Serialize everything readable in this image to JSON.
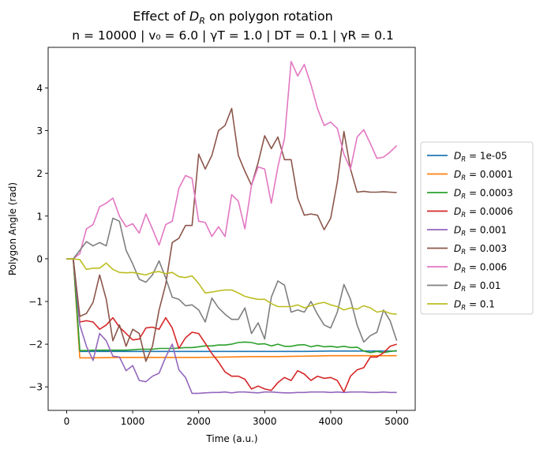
{
  "chart_data": {
    "type": "line",
    "title_line1_prefix": "Effect of ",
    "title_line1_symbol": "D",
    "title_line1_sub": "R",
    "title_line1_suffix": " on polygon rotation",
    "title_line2": "n = 10000 | v₀ = 6.0 | γT = 1.0 | DT = 0.1 | γR = 0.1",
    "xlabel": "Time (a.u.)",
    "ylabel": "Polygon Angle (rad)",
    "xlim": [
      -280,
      5280
    ],
    "ylim": [
      -3.55,
      4.95
    ],
    "xticks": [
      0,
      1000,
      2000,
      3000,
      4000,
      5000
    ],
    "yticks": [
      -3,
      -2,
      -1,
      0,
      1,
      2,
      3,
      4
    ],
    "grid": false,
    "legend_position": "center-right-outside",
    "series": [
      {
        "name": "D_R = 1e-05",
        "legend_value": "1e-05",
        "color": "#1f77b4",
        "x": [
          0,
          100,
          200,
          400,
          800,
          1200,
          1600,
          2000,
          2400,
          2800,
          3200,
          3600,
          4000,
          4400,
          4800,
          5000
        ],
        "y": [
          0,
          0,
          -2.17,
          -2.17,
          -2.17,
          -2.17,
          -2.17,
          -2.17,
          -2.17,
          -2.17,
          -2.17,
          -2.17,
          -2.16,
          -2.16,
          -2.16,
          -2.16
        ]
      },
      {
        "name": "D_R = 0.0001",
        "legend_value": "0.0001",
        "color": "#ff7f0e",
        "x": [
          0,
          100,
          200,
          400,
          800,
          1200,
          1600,
          2000,
          2400,
          2800,
          3200,
          3600,
          4000,
          4400,
          4800,
          5000
        ],
        "y": [
          0,
          0,
          -2.32,
          -2.32,
          -2.31,
          -2.31,
          -2.31,
          -2.31,
          -2.3,
          -2.29,
          -2.29,
          -2.28,
          -2.27,
          -2.27,
          -2.27,
          -2.27
        ]
      },
      {
        "name": "D_R = 0.0003",
        "legend_value": "0.0003",
        "color": "#2ca02c",
        "x": [
          0,
          100,
          200,
          300,
          400,
          500,
          600,
          700,
          800,
          900,
          1000,
          1100,
          1200,
          1300,
          1400,
          1500,
          1600,
          1700,
          1800,
          1900,
          2000,
          2100,
          2200,
          2300,
          2400,
          2500,
          2600,
          2700,
          2800,
          2900,
          3000,
          3100,
          3200,
          3300,
          3400,
          3500,
          3600,
          3700,
          3800,
          3900,
          4000,
          4100,
          4200,
          4300,
          4400,
          4500,
          4600,
          4700,
          4800,
          4900,
          5000
        ],
        "y": [
          0,
          0,
          -2.15,
          -2.15,
          -2.14,
          -2.14,
          -2.14,
          -2.14,
          -2.14,
          -2.14,
          -2.13,
          -2.12,
          -2.12,
          -2.12,
          -2.1,
          -2.1,
          -2.1,
          -2.09,
          -2.08,
          -2.08,
          -2.06,
          -2.04,
          -2.04,
          -2.02,
          -2.02,
          -2.0,
          -1.96,
          -1.95,
          -1.96,
          -2.0,
          -1.99,
          -2.04,
          -2.0,
          -2.05,
          -2.05,
          -2.02,
          -2.01,
          -2.06,
          -2.03,
          -2.06,
          -2.05,
          -2.07,
          -2.05,
          -2.08,
          -2.07,
          -2.16,
          -2.2,
          -2.17,
          -2.2,
          -2.17,
          -2.15
        ]
      },
      {
        "name": "D_R = 0.0006",
        "legend_value": "0.0006",
        "color": "#d62728",
        "x": [
          0,
          100,
          200,
          300,
          400,
          500,
          600,
          700,
          800,
          900,
          1000,
          1100,
          1200,
          1300,
          1400,
          1500,
          1600,
          1700,
          1800,
          1900,
          2000,
          2100,
          2200,
          2300,
          2400,
          2500,
          2600,
          2700,
          2800,
          2900,
          3000,
          3100,
          3200,
          3300,
          3400,
          3500,
          3600,
          3700,
          3800,
          3900,
          4000,
          4100,
          4200,
          4300,
          4400,
          4500,
          4600,
          4700,
          4800,
          4900,
          5000
        ],
        "y": [
          0,
          0,
          -1.48,
          -1.45,
          -1.48,
          -1.65,
          -1.55,
          -1.38,
          -1.6,
          -1.75,
          -1.9,
          -1.88,
          -1.62,
          -1.6,
          -1.65,
          -1.38,
          -1.62,
          -2.1,
          -1.85,
          -1.72,
          -1.75,
          -1.98,
          -2.22,
          -2.42,
          -2.65,
          -2.75,
          -2.75,
          -2.82,
          -3.05,
          -2.98,
          -3.05,
          -3.08,
          -2.9,
          -2.78,
          -2.85,
          -2.62,
          -2.7,
          -2.85,
          -2.75,
          -2.8,
          -2.78,
          -2.85,
          -3.12,
          -2.75,
          -2.6,
          -2.55,
          -2.3,
          -2.3,
          -2.2,
          -2.05,
          -2.0
        ]
      },
      {
        "name": "D_R = 0.001",
        "legend_value": "0.001",
        "color": "#9467bd",
        "x": [
          0,
          100,
          200,
          300,
          400,
          500,
          600,
          700,
          800,
          900,
          1000,
          1100,
          1200,
          1300,
          1400,
          1500,
          1600,
          1700,
          1800,
          1900,
          2000,
          2100,
          2200,
          2300,
          2400,
          2500,
          2600,
          2700,
          2800,
          2900,
          3000,
          3100,
          3200,
          3300,
          3400,
          3500,
          3600,
          3700,
          3800,
          3900,
          4000,
          4100,
          4200,
          4300,
          4400,
          4500,
          4600,
          4700,
          4800,
          4900,
          5000
        ],
        "y": [
          0,
          0,
          -1.55,
          -2.05,
          -2.38,
          -1.75,
          -1.92,
          -2.28,
          -2.3,
          -2.62,
          -2.5,
          -2.85,
          -2.88,
          -2.75,
          -2.68,
          -2.3,
          -2.0,
          -2.6,
          -2.78,
          -3.15,
          -3.15,
          -3.14,
          -3.13,
          -3.13,
          -3.12,
          -3.14,
          -3.12,
          -3.12,
          -3.13,
          -3.14,
          -3.12,
          -3.12,
          -3.13,
          -3.14,
          -3.14,
          -3.13,
          -3.13,
          -3.12,
          -3.12,
          -3.12,
          -3.13,
          -3.12,
          -3.13,
          -3.12,
          -3.12,
          -3.12,
          -3.13,
          -3.13,
          -3.12,
          -3.13,
          -3.13
        ]
      },
      {
        "name": "D_R = 0.003",
        "legend_value": "0.003",
        "color": "#8c564b",
        "x": [
          0,
          100,
          200,
          300,
          400,
          500,
          600,
          700,
          800,
          900,
          1000,
          1100,
          1200,
          1300,
          1400,
          1500,
          1600,
          1700,
          1800,
          1900,
          2000,
          2100,
          2200,
          2300,
          2400,
          2500,
          2600,
          2700,
          2800,
          2900,
          3000,
          3100,
          3200,
          3300,
          3400,
          3500,
          3600,
          3700,
          3800,
          3900,
          4000,
          4100,
          4200,
          4300,
          4400,
          4500,
          4600,
          4700,
          4800,
          4900,
          5000
        ],
        "y": [
          0,
          0,
          -1.35,
          -1.28,
          -1.02,
          -0.38,
          -0.95,
          -1.92,
          -1.55,
          -2.05,
          -1.65,
          -1.75,
          -2.4,
          -2.05,
          -1.2,
          -0.6,
          0.38,
          0.48,
          0.78,
          0.78,
          2.45,
          2.1,
          2.42,
          3.0,
          3.12,
          3.52,
          2.42,
          2.05,
          1.72,
          2.25,
          2.88,
          2.58,
          2.85,
          2.32,
          2.32,
          1.42,
          1.02,
          1.05,
          1.02,
          0.68,
          0.95,
          1.8,
          2.98,
          2.1,
          1.56,
          1.58,
          1.56,
          1.56,
          1.57,
          1.56,
          1.55
        ]
      },
      {
        "name": "D_R = 0.006",
        "legend_value": "0.006",
        "color": "#e377c2",
        "x": [
          0,
          100,
          200,
          300,
          400,
          500,
          600,
          700,
          800,
          900,
          1000,
          1100,
          1200,
          1300,
          1400,
          1500,
          1600,
          1700,
          1800,
          1900,
          2000,
          2100,
          2200,
          2300,
          2400,
          2500,
          2600,
          2700,
          2800,
          2900,
          3000,
          3100,
          3200,
          3300,
          3400,
          3500,
          3600,
          3700,
          3800,
          3900,
          4000,
          4100,
          4200,
          4300,
          4400,
          4500,
          4600,
          4700,
          4800,
          4900,
          5000
        ],
        "y": [
          0,
          0,
          0.12,
          0.7,
          0.8,
          1.22,
          1.3,
          1.42,
          1.0,
          0.75,
          0.82,
          0.6,
          1.05,
          0.7,
          0.32,
          0.8,
          0.88,
          1.65,
          1.95,
          1.88,
          0.88,
          0.85,
          0.52,
          0.75,
          0.52,
          1.5,
          1.35,
          0.7,
          1.72,
          2.15,
          2.1,
          1.3,
          2.15,
          2.82,
          4.62,
          4.28,
          4.55,
          4.08,
          3.52,
          3.12,
          3.2,
          3.05,
          2.45,
          2.1,
          2.85,
          3.02,
          2.7,
          2.35,
          2.38,
          2.5,
          2.65
        ]
      },
      {
        "name": "D_R = 0.01",
        "legend_value": "0.01",
        "color": "#7f7f7f",
        "x": [
          0,
          100,
          200,
          300,
          400,
          500,
          600,
          700,
          800,
          900,
          1000,
          1100,
          1200,
          1300,
          1400,
          1500,
          1600,
          1700,
          1800,
          1900,
          2000,
          2100,
          2200,
          2300,
          2400,
          2500,
          2600,
          2700,
          2800,
          2900,
          3000,
          3100,
          3200,
          3300,
          3400,
          3500,
          3600,
          3700,
          3800,
          3900,
          4000,
          4100,
          4200,
          4300,
          4400,
          4500,
          4600,
          4700,
          4800,
          4900,
          5000
        ],
        "y": [
          0,
          0,
          0.2,
          0.4,
          0.3,
          0.38,
          0.3,
          0.95,
          0.88,
          0.2,
          -0.12,
          -0.48,
          -0.55,
          -0.38,
          -0.05,
          -0.45,
          -0.9,
          -0.95,
          -1.1,
          -1.08,
          -1.2,
          -1.48,
          -0.92,
          -1.15,
          -1.3,
          -1.42,
          -1.42,
          -1.15,
          -1.75,
          -1.5,
          -1.88,
          -0.9,
          -0.52,
          -0.62,
          -1.25,
          -1.2,
          -1.25,
          -1.0,
          -1.3,
          -1.55,
          -1.62,
          -1.25,
          -0.6,
          -0.95,
          -1.55,
          -1.95,
          -1.8,
          -1.72,
          -1.2,
          -1.45,
          -1.92
        ]
      },
      {
        "name": "D_R = 0.1",
        "legend_value": "0.1",
        "color": "#bcbd22",
        "x": [
          0,
          100,
          200,
          300,
          400,
          500,
          600,
          700,
          800,
          900,
          1000,
          1100,
          1200,
          1300,
          1400,
          1500,
          1600,
          1700,
          1800,
          1900,
          2000,
          2100,
          2200,
          2300,
          2400,
          2500,
          2600,
          2700,
          2800,
          2900,
          3000,
          3100,
          3200,
          3300,
          3400,
          3500,
          3600,
          3700,
          3800,
          3900,
          4000,
          4100,
          4200,
          4300,
          4400,
          4500,
          4600,
          4700,
          4800,
          4900,
          5000
        ],
        "y": [
          0,
          0,
          -0.02,
          -0.25,
          -0.22,
          -0.22,
          -0.1,
          -0.25,
          -0.32,
          -0.33,
          -0.32,
          -0.35,
          -0.38,
          -0.32,
          -0.3,
          -0.35,
          -0.32,
          -0.42,
          -0.44,
          -0.4,
          -0.58,
          -0.8,
          -0.78,
          -0.75,
          -0.73,
          -0.73,
          -0.8,
          -0.88,
          -0.92,
          -0.95,
          -0.95,
          -1.05,
          -1.12,
          -1.12,
          -1.12,
          -1.08,
          -1.15,
          -1.1,
          -1.05,
          -1.02,
          -1.08,
          -1.12,
          -1.2,
          -1.15,
          -1.18,
          -1.1,
          -1.15,
          -1.25,
          -1.22,
          -1.28,
          -1.3
        ]
      }
    ]
  }
}
